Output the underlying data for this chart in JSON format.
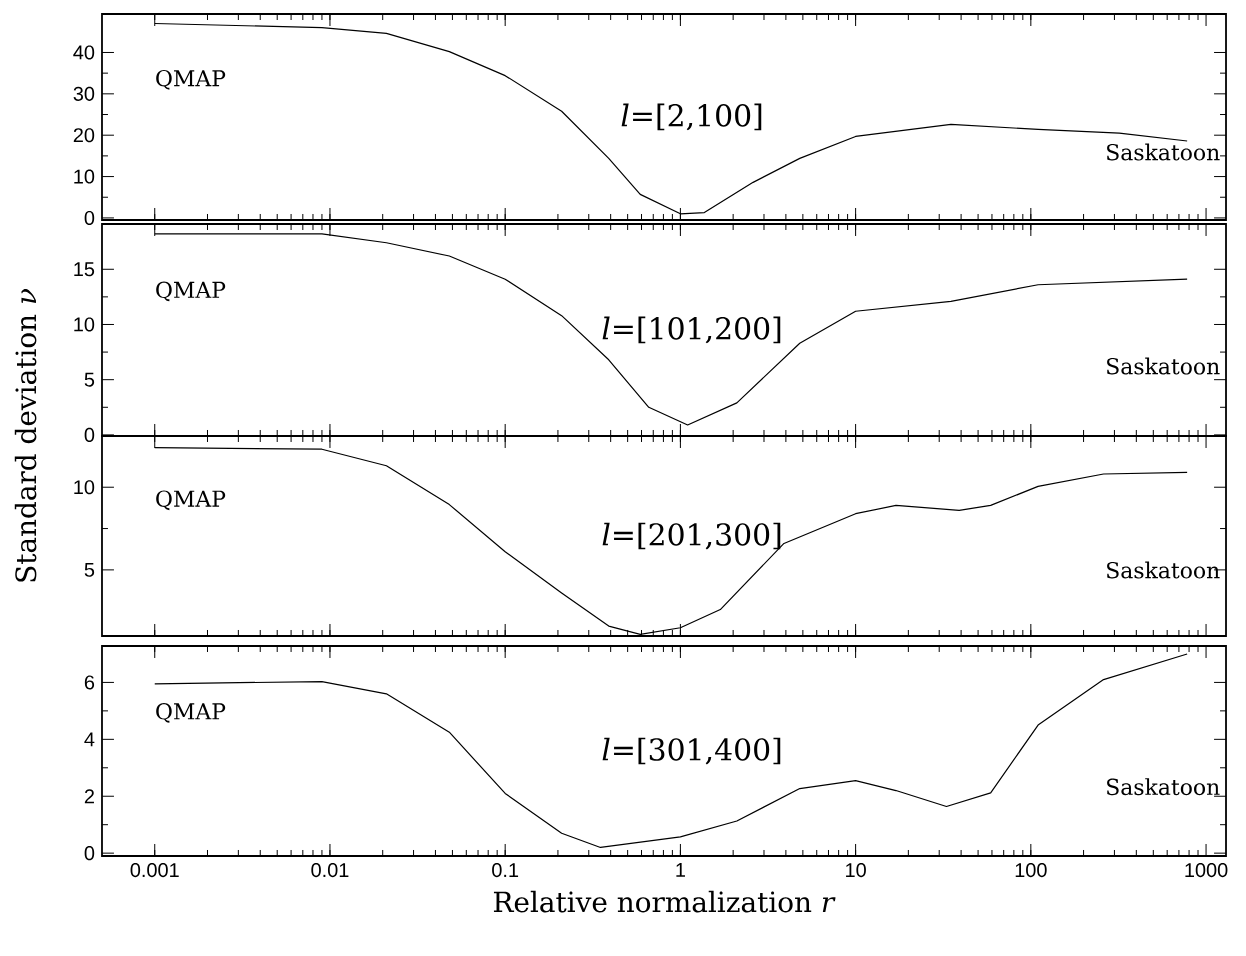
{
  "chart_data": [
    {
      "type": "line",
      "x": [
        0.001,
        0.009,
        0.021,
        0.048,
        0.1,
        0.21,
        0.39,
        0.59,
        1,
        1.37,
        2.6,
        4.8,
        10,
        35,
        110,
        320,
        780
      ],
      "series": [
        {
          "color": "#000000",
          "values": [
            47,
            46,
            44.6,
            40.2,
            34.4,
            25.8,
            14.4,
            5.7,
            1,
            1.3,
            8.6,
            14.4,
            19.7,
            22.6,
            21.4,
            20.5,
            18.6
          ]
        }
      ],
      "log": "x",
      "xlim": [
        0.0005,
        1300
      ],
      "ylim": [
        -0.5,
        49.3
      ],
      "xticks": [
        0.001,
        0.01,
        0.1,
        1,
        10,
        100,
        1000
      ],
      "yticks": [
        0,
        10,
        20,
        30,
        40
      ],
      "tick_labels": "y",
      "annotations": [
        "QMAP",
        "Saskatoon",
        "*l*=[2,100]"
      ]
    },
    {
      "type": "line",
      "x": [
        0.001,
        0.009,
        0.021,
        0.048,
        0.1,
        0.21,
        0.39,
        0.66,
        1.1,
        2.1,
        4.8,
        10,
        35,
        110,
        780
      ],
      "series": [
        {
          "color": "#000000",
          "values": [
            18.2,
            18.2,
            17.4,
            16.2,
            14.1,
            10.8,
            6.8,
            2.5,
            0.9,
            2.9,
            8.3,
            11.2,
            12.1,
            13.6,
            14.1
          ]
        }
      ],
      "log": "x",
      "xlim": [
        0.0005,
        1300
      ],
      "ylim": [
        -0.1,
        19.1
      ],
      "xticks": [
        0.001,
        0.01,
        0.1,
        1,
        10,
        100,
        1000
      ],
      "yticks": [
        0,
        5,
        10,
        15
      ],
      "tick_labels": "y",
      "ylabel": "Standard deviation *ν*",
      "annotations": [
        "QMAP",
        "Saskatoon",
        "*l*=[101,200]"
      ]
    },
    {
      "type": "line",
      "x": [
        0.001,
        0.009,
        0.021,
        0.048,
        0.1,
        0.21,
        0.39,
        0.59,
        1,
        1.69,
        3.9,
        10,
        17,
        39,
        59,
        110,
        260,
        780
      ],
      "series": [
        {
          "color": "#000000",
          "values": [
            12.4,
            12.3,
            11.3,
            8.95,
            6.1,
            3.6,
            1.6,
            1.1,
            1.5,
            2.6,
            6.6,
            8.4,
            8.9,
            8.6,
            8.9,
            10.05,
            10.8,
            10.9
          ]
        }
      ],
      "log": "x",
      "xlim": [
        0.0005,
        1300
      ],
      "ylim": [
        1.0,
        13.1
      ],
      "xticks": [
        0.001,
        0.01,
        0.1,
        1,
        10,
        100,
        1000
      ],
      "yticks": [
        5,
        10
      ],
      "tick_labels": "y",
      "annotations": [
        "QMAP",
        "Saskatoon",
        "*l*=[201,300]"
      ]
    },
    {
      "type": "line",
      "x": [
        0.001,
        0.009,
        0.021,
        0.048,
        0.1,
        0.21,
        0.35,
        1,
        2.1,
        4.8,
        10,
        17,
        33,
        59,
        110,
        260,
        780
      ],
      "series": [
        {
          "color": "#000000",
          "values": [
            5.95,
            6.03,
            5.6,
            4.25,
            2.1,
            0.7,
            0.2,
            0.57,
            1.13,
            2.27,
            2.55,
            2.2,
            1.64,
            2.12,
            4.5,
            6.1,
            7.0
          ]
        }
      ],
      "log": "x",
      "xlim": [
        0.0005,
        1300
      ],
      "ylim": [
        -0.1,
        7.28
      ],
      "xticks": [
        0.001,
        0.01,
        0.1,
        1,
        10,
        100,
        1000
      ],
      "yticks": [
        0,
        2,
        4,
        6
      ],
      "xlabel": "Relative normalization *r*",
      "annotations": [
        "QMAP",
        "Saskatoon",
        "*l*=[301,400]"
      ]
    }
  ]
}
